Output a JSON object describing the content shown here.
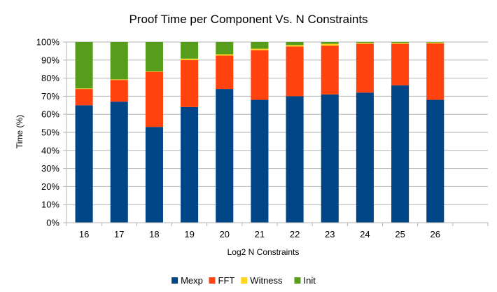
{
  "chart_data": {
    "type": "bar",
    "stacked": true,
    "percent": true,
    "title": "Proof Time per Component Vs. N Constraints",
    "xlabel": "Log2 N Constraints",
    "ylabel": "Time (%)",
    "ylim": [
      0,
      100
    ],
    "y_ticks": [
      "0%",
      "10%",
      "20%",
      "30%",
      "40%",
      "50%",
      "60%",
      "70%",
      "80%",
      "90%",
      "100%"
    ],
    "grid": true,
    "legend_position": "bottom",
    "categories": [
      "16",
      "17",
      "18",
      "19",
      "20",
      "21",
      "22",
      "23",
      "24",
      "25",
      "26",
      ""
    ],
    "series": [
      {
        "name": "Mexp",
        "color": "#004586",
        "values": [
          65,
          67,
          53,
          64,
          74,
          68,
          70,
          71,
          72,
          76,
          68,
          null
        ]
      },
      {
        "name": "FFT",
        "color": "#ff420e",
        "values": [
          9,
          12,
          30.5,
          26,
          18.5,
          27.5,
          27.5,
          27,
          27,
          23,
          31.2,
          null
        ]
      },
      {
        "name": "Witness",
        "color": "#ffd320",
        "values": [
          0.3,
          0.3,
          0.3,
          0.8,
          0.7,
          0.8,
          0.8,
          1.0,
          0.5,
          0.5,
          0.5,
          null
        ]
      },
      {
        "name": "Init",
        "color": "#579d1c",
        "values": [
          25.7,
          20.7,
          16.2,
          9.2,
          6.8,
          3.7,
          1.7,
          1.0,
          0.5,
          0.5,
          0.3,
          null
        ]
      }
    ]
  }
}
